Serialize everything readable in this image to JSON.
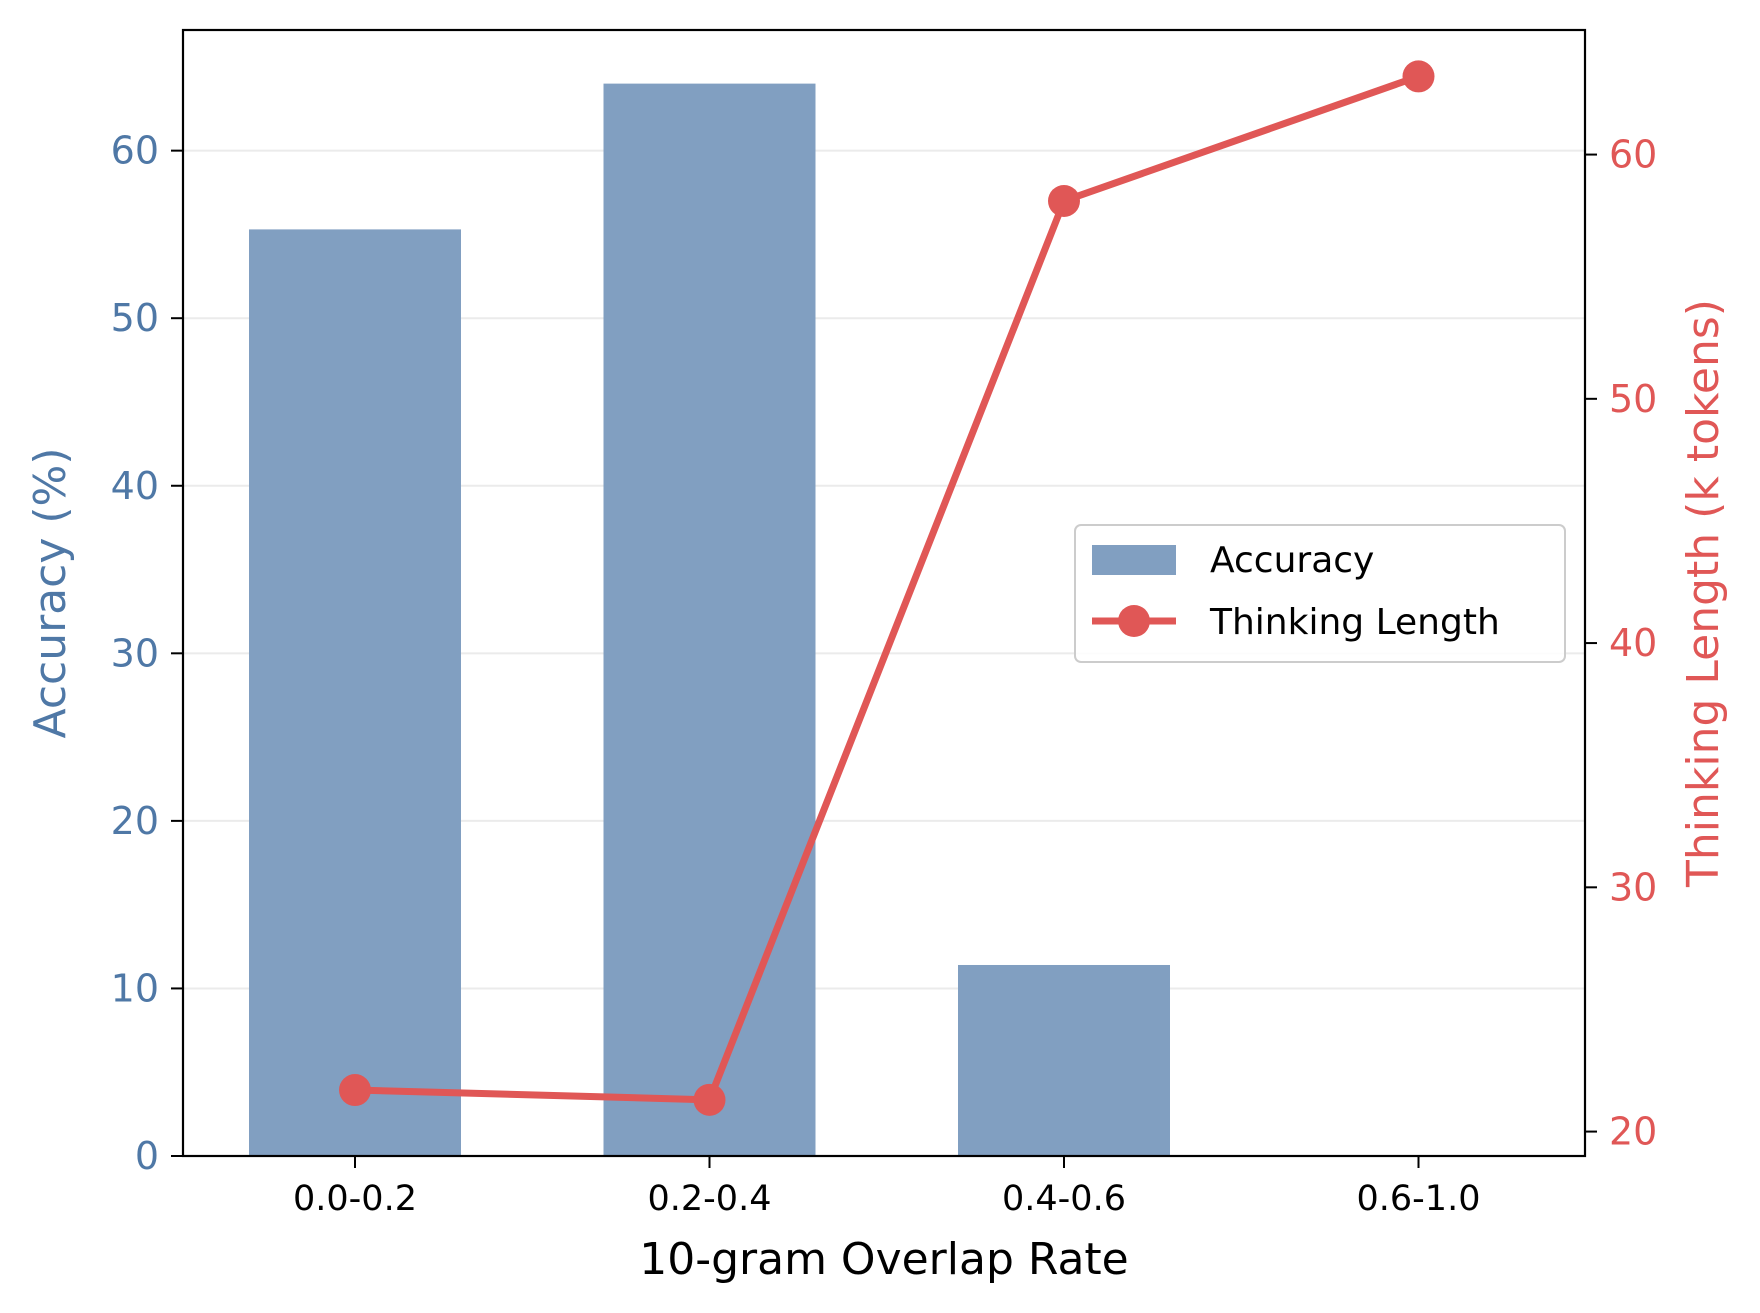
{
  "chart_data": {
    "type": "bar+line",
    "categories": [
      "0.0-0.2",
      "0.2-0.4",
      "0.4-0.6",
      "0.6-1.0"
    ],
    "xlabel": "10-gram Overlap Rate",
    "series": [
      {
        "name": "Accuracy",
        "type": "bar",
        "axis": "left",
        "values": [
          55.3,
          64.0,
          11.4,
          0
        ],
        "color": "#819fc1"
      },
      {
        "name": "Thinking Length",
        "type": "line",
        "axis": "right",
        "values": [
          21.7,
          21.3,
          58.1,
          63.2
        ],
        "color": "#e05756"
      }
    ],
    "left_axis": {
      "label": "Accuracy (%)",
      "range": [
        0,
        67.2
      ],
      "ticks": [
        0,
        10,
        20,
        30,
        40,
        50,
        60
      ],
      "color": "#4f78a6"
    },
    "right_axis": {
      "label": "Thinking Length (k tokens)",
      "range": [
        19.0,
        65.1
      ],
      "ticks": [
        20,
        30,
        40,
        50,
        60
      ],
      "color": "#e05756"
    },
    "grid": "horizontal",
    "legend_position": "center-right"
  }
}
